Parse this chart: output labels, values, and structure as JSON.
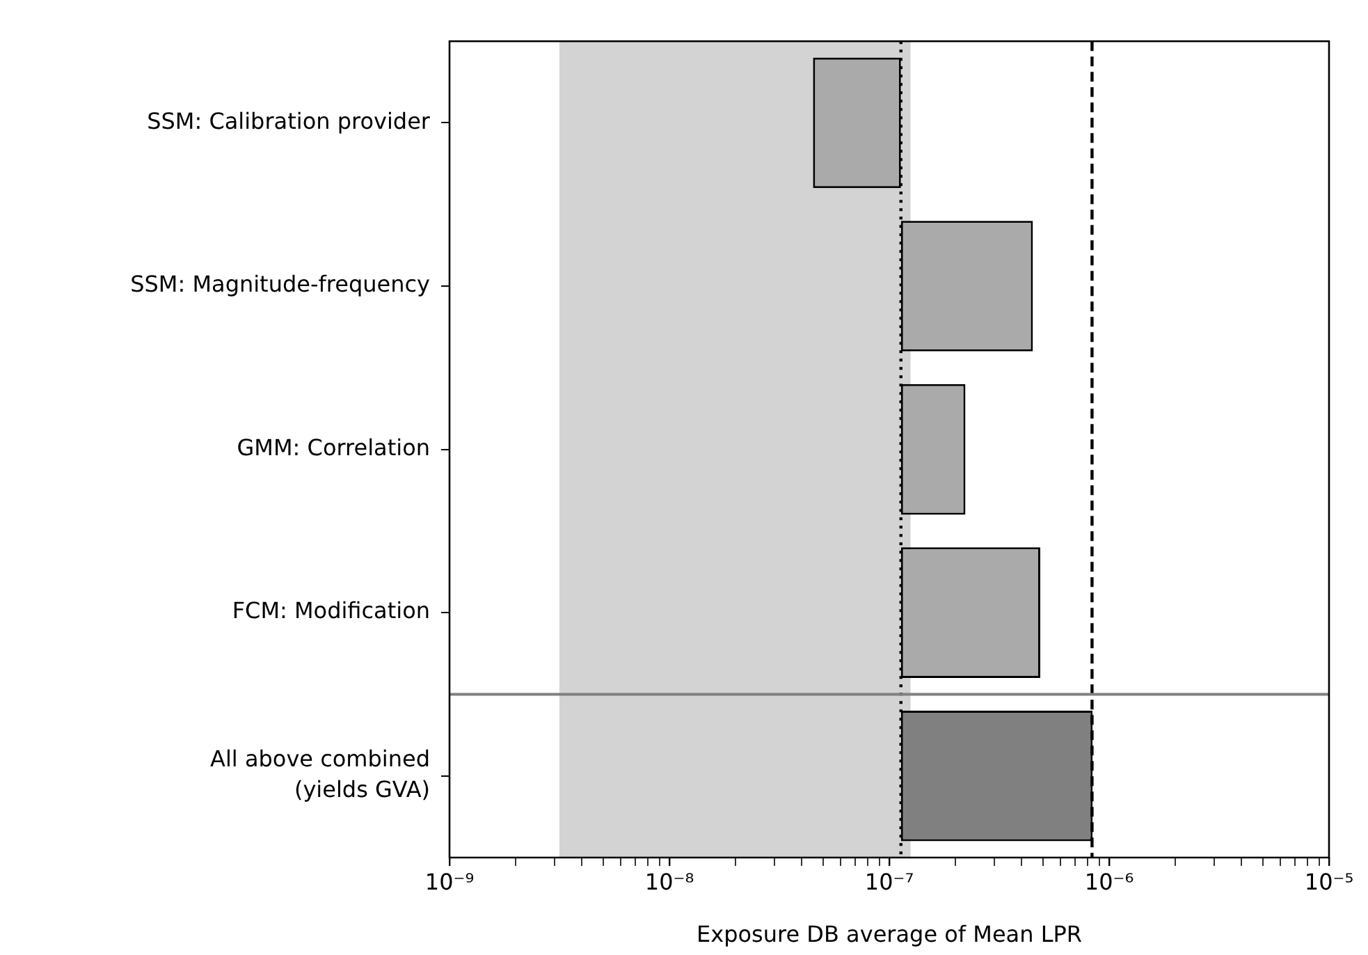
{
  "chart_data": {
    "type": "bar",
    "orientation": "horizontal",
    "log": "x",
    "xlabel": "Exposure DB average of Mean LPR",
    "categories": [
      "SSM: Calibration provider",
      "SSM: Magnitude-frequency",
      "GMM: Correlation",
      "FCM: Modification",
      "All above combined\n(yields GVA)"
    ],
    "base": [
      4.5e-08,
      1.13e-07,
      1.13e-07,
      1.13e-07,
      1.13e-07
    ],
    "values": [
      6.8e-08,
      3.37e-07,
      1.09e-07,
      3.73e-07,
      7.28e-07
    ],
    "colors": [
      "#aaaaaa",
      "#aaaaaa",
      "#aaaaaa",
      "#aaaaaa",
      "#808080"
    ],
    "xlim": [
      1e-09,
      1e-05
    ],
    "xticks": [
      {
        "value": 1e-09,
        "label": "10⁻⁹"
      },
      {
        "value": 2e-09,
        "label": null
      },
      {
        "value": 3e-09,
        "label": null
      },
      {
        "value": 4e-09,
        "label": null
      },
      {
        "value": 5e-09,
        "label": null
      },
      {
        "value": 6e-09,
        "label": null
      },
      {
        "value": 7e-09,
        "label": null
      },
      {
        "value": 8e-09,
        "label": null
      },
      {
        "value": 9e-09,
        "label": null
      },
      {
        "value": 1e-08,
        "label": "10⁻⁸"
      },
      {
        "value": 2e-08,
        "label": null
      },
      {
        "value": 3e-08,
        "label": null
      },
      {
        "value": 4e-08,
        "label": null
      },
      {
        "value": 5e-08,
        "label": null
      },
      {
        "value": 6e-08,
        "label": null
      },
      {
        "value": 7e-08,
        "label": null
      },
      {
        "value": 8e-08,
        "label": null
      },
      {
        "value": 9e-08,
        "label": null
      },
      {
        "value": 1e-07,
        "label": "10⁻⁷"
      },
      {
        "value": 2e-07,
        "label": null
      },
      {
        "value": 3e-07,
        "label": null
      },
      {
        "value": 4e-07,
        "label": null
      },
      {
        "value": 5e-07,
        "label": null
      },
      {
        "value": 6e-07,
        "label": null
      },
      {
        "value": 7e-07,
        "label": null
      },
      {
        "value": 8e-07,
        "label": null
      },
      {
        "value": 9e-07,
        "label": null
      },
      {
        "value": 1e-06,
        "label": "10⁻⁶"
      },
      {
        "value": 2e-06,
        "label": null
      },
      {
        "value": 3e-06,
        "label": null
      },
      {
        "value": 4e-06,
        "label": null
      },
      {
        "value": 5e-06,
        "label": null
      },
      {
        "value": 6e-06,
        "label": null
      },
      {
        "value": 7e-06,
        "label": null
      },
      {
        "value": 8e-06,
        "label": null
      },
      {
        "value": 9e-06,
        "label": null
      },
      {
        "value": 1e-05,
        "label": "10⁻⁵"
      }
    ],
    "bands": [
      {
        "axis": "x",
        "from": 3.16e-09,
        "to": 1.25e-07,
        "color": "#d3d3d3"
      }
    ],
    "ref_lines": [
      {
        "axis": "x",
        "value": 1.13e-07,
        "color": "#000000",
        "line_style": "dotted"
      },
      {
        "axis": "x",
        "value": 8.36e-07,
        "color": "#000000",
        "line_style": "dashed"
      }
    ],
    "grid": false,
    "legend": false
  }
}
